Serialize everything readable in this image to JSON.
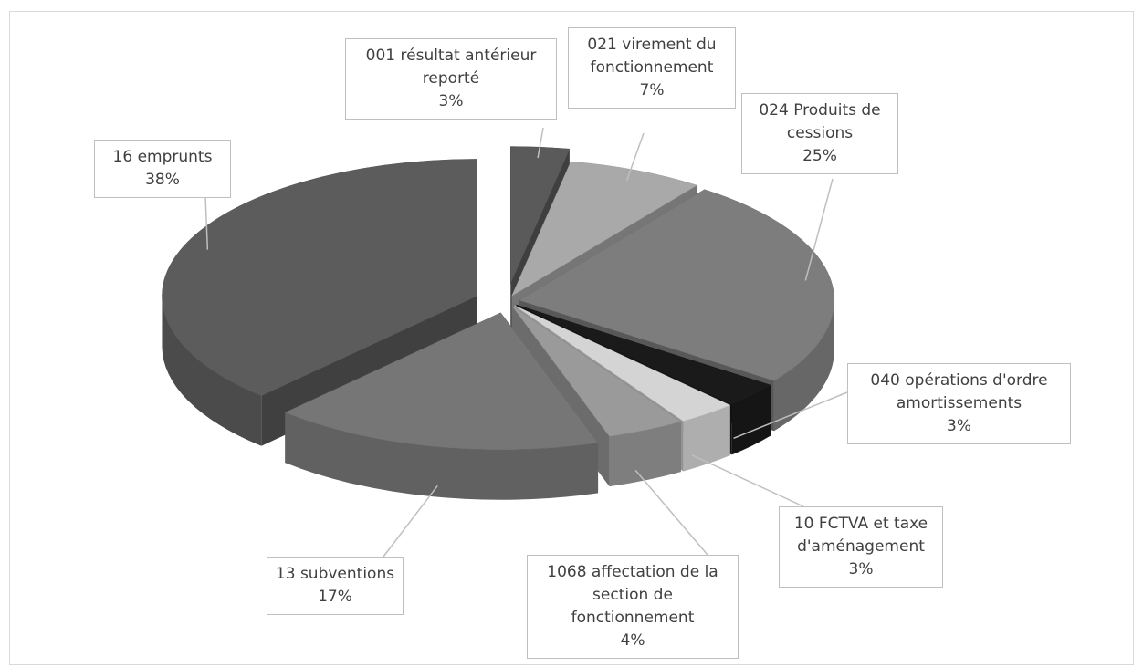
{
  "chart_data": {
    "type": "pie",
    "categories": [
      "001 résultat antérieur reporté",
      "021 virement du fonctionnement",
      "024 Produits de cessions",
      "040 opérations d'ordre amortissements",
      "10 FCTVA et taxe d'aménagement",
      "1068 affectation de la section de fonctionnement",
      "13 subventions",
      "16 emprunts"
    ],
    "values": [
      3,
      7,
      25,
      3,
      3,
      4,
      17,
      38
    ],
    "value_labels": [
      "3%",
      "7%",
      "25%",
      "3%",
      "3%",
      "4%",
      "17%",
      "38%"
    ],
    "colors": [
      "#5a5a5a",
      "#a9a9a9",
      "#7d7d7d",
      "#1a1a1a",
      "#d4d4d4",
      "#9a9a9a",
      "#767676",
      "#5c5c5c"
    ]
  }
}
